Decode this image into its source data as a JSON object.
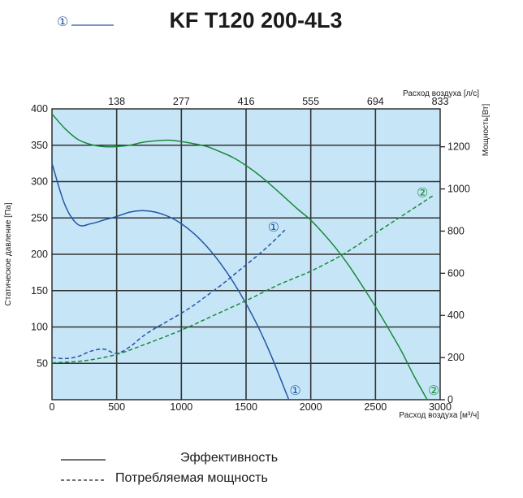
{
  "header": {
    "title": "KF T120 200-4L3",
    "key_marker": "①"
  },
  "legend": {
    "efficiency": "Эффективность",
    "power": "Потребляемая мощность"
  },
  "colors": {
    "plot_bg": "#c6e6f7",
    "grid": "#333333",
    "curve1": "#2456a4",
    "curve2": "#1a8a3a"
  },
  "chart_data": {
    "type": "line",
    "title": "KF T120 200-4L3",
    "xlabel": "Расход воздуха [м³/ч]",
    "x2label": "Расход воздуха [л/с]",
    "ylabel": "Статическое давление [Па]",
    "y2label": "Мощность[Вт]",
    "xlim": [
      0,
      3000
    ],
    "ylim": [
      0,
      400
    ],
    "y2lim": [
      0,
      1380
    ],
    "xticks": [
      "0",
      "500",
      "1000",
      "1500",
      "2000",
      "2500",
      "3000"
    ],
    "x2ticks": [
      "138",
      "277",
      "416",
      "555",
      "694",
      "833"
    ],
    "yticks": [
      "50",
      "100",
      "150",
      "200",
      "250",
      "300",
      "350",
      "400"
    ],
    "y2ticks": [
      "0",
      "200",
      "400",
      "600",
      "800",
      "1000",
      "1200"
    ],
    "grid": true,
    "series": [
      {
        "name": "①",
        "kind": "pressure",
        "axis": "y",
        "x": [
          0,
          100,
          200,
          300,
          400,
          500,
          600,
          700,
          800,
          900,
          1000,
          1100,
          1200,
          1300,
          1400,
          1500,
          1600,
          1700,
          1830
        ],
        "y": [
          325,
          268,
          241,
          242,
          247,
          252,
          258,
          260,
          258,
          252,
          242,
          228,
          210,
          188,
          162,
          132,
          98,
          58,
          0
        ]
      },
      {
        "name": "①",
        "kind": "power",
        "axis": "y2",
        "x": [
          0,
          100,
          200,
          300,
          400,
          500,
          600,
          700,
          800,
          900,
          1000,
          1100,
          1200,
          1300,
          1400,
          1500,
          1600,
          1700,
          1800
        ],
        "y": [
          200,
          195,
          205,
          230,
          240,
          220,
          250,
          300,
          340,
          375,
          410,
          450,
          495,
          540,
          590,
          640,
          690,
          745,
          805
        ]
      },
      {
        "name": "②",
        "kind": "pressure",
        "axis": "y",
        "x": [
          0,
          100,
          200,
          300,
          400,
          500,
          600,
          700,
          800,
          900,
          1000,
          1100,
          1200,
          1300,
          1400,
          1500,
          1600,
          1700,
          1800,
          1900,
          2000,
          2100,
          2200,
          2300,
          2400,
          2500,
          2600,
          2700,
          2800,
          2900
        ],
        "y": [
          393,
          373,
          358,
          351,
          348,
          348,
          350,
          354,
          356,
          357,
          355,
          352,
          348,
          341,
          333,
          322,
          309,
          294,
          278,
          262,
          247,
          228,
          207,
          183,
          156,
          128,
          98,
          67,
          32,
          0
        ]
      },
      {
        "name": "②",
        "kind": "power",
        "axis": "y2",
        "x": [
          0,
          250,
          500,
          750,
          1000,
          1250,
          1500,
          1750,
          2000,
          2250,
          2500,
          2750,
          2950
        ],
        "y": [
          175,
          185,
          215,
          270,
          330,
          400,
          470,
          545,
          610,
          690,
          790,
          890,
          970
        ]
      }
    ]
  }
}
